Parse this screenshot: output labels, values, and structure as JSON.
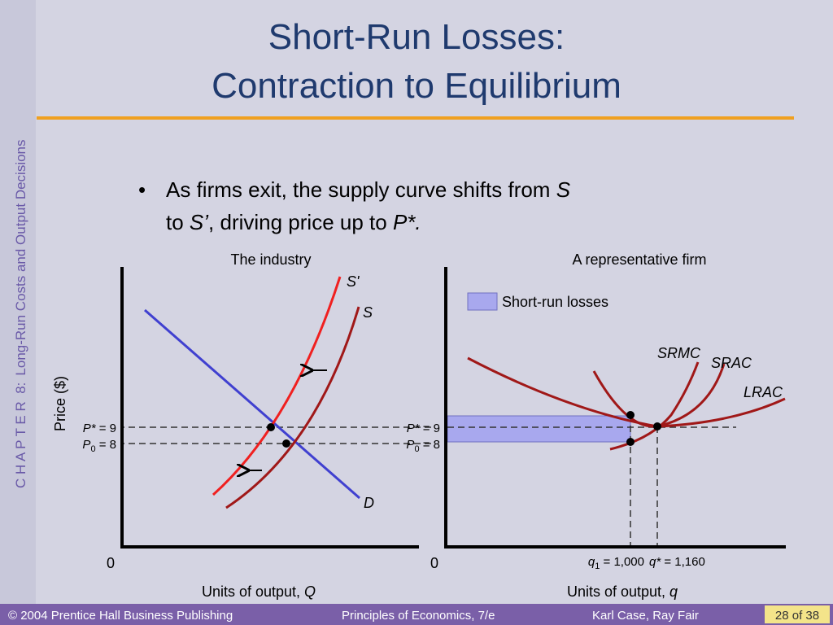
{
  "slide": {
    "title_line1": "Short-Run Losses:",
    "title_line2": "Contraction to Equilibrium",
    "side_label_chapter": "C H A P T E R  8:",
    "side_label_topic": "Long-Run Costs and Output Decisions",
    "bullet": [
      "As firms exit, the supply curve shifts from ",
      "S",
      "to ",
      "S’",
      ", driving price up to ",
      "P*."
    ]
  },
  "industry": {
    "title": "The industry",
    "y_axis_label": "Price ($)",
    "x_axis_label": "Units of output, ",
    "x_axis_var": "Q",
    "origin": "0",
    "curve_labels": {
      "s_prime": "S'",
      "s": "S",
      "d": "D"
    },
    "price_high": {
      "symbol": "P*",
      "text": " = 9"
    },
    "price_low": {
      "symbol": "P",
      "sub": "0",
      "text": " = 8"
    }
  },
  "firm": {
    "title": "A representative firm",
    "legend": "Short-run losses",
    "x_axis_label": "Units of output, ",
    "x_axis_var": "q",
    "origin": "0",
    "curve_labels": {
      "srmc": "SRMC",
      "srac": "SRAC",
      "lrac": "LRAC"
    },
    "price_high": {
      "symbol": "P*",
      "text": " = 9"
    },
    "price_low": {
      "symbol": "P",
      "sub": "0",
      "text": " = 8"
    },
    "quantity_low": {
      "symbol": "q",
      "sub": "1",
      "text": " = 1,000"
    },
    "quantity_high": {
      "symbol": "q*",
      "text": " = 1,160"
    }
  },
  "footer": {
    "copyright": "© 2004 Prentice Hall Business Publishing",
    "book": "Principles of Economics, 7/e",
    "authors": "Karl Case, Ray Fair",
    "page": "28 of 38"
  }
}
